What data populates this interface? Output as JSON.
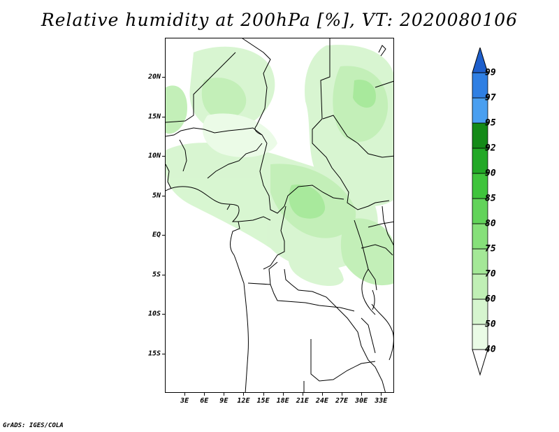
{
  "title": "Relative humidity at 200hPa [%], VT: 2020080106",
  "credit": "GrADS: IGES/COLA",
  "map": {
    "lat_labels": [
      "20N",
      "15N",
      "10N",
      "5N",
      "EQ",
      "5S",
      "10S",
      "15S"
    ],
    "lat_values": [
      20,
      15,
      10,
      5,
      0,
      -5,
      -10,
      -15
    ],
    "lon_labels": [
      "3E",
      "6E",
      "9E",
      "12E",
      "15E",
      "18E",
      "21E",
      "24E",
      "27E",
      "30E",
      "33E"
    ],
    "lon_values": [
      3,
      6,
      9,
      12,
      15,
      18,
      21,
      24,
      27,
      30,
      33
    ],
    "lat_range": [
      -20,
      25
    ],
    "lon_range": [
      0,
      35
    ]
  },
  "colorbar": {
    "levels": [
      "40",
      "50",
      "60",
      "70",
      "75",
      "80",
      "85",
      "90",
      "92",
      "95",
      "97",
      "99"
    ],
    "colors": [
      "#eafbe6",
      "#d6f5cf",
      "#c0efb5",
      "#a4e897",
      "#86e07a",
      "#62d35a",
      "#3fc43c",
      "#22a826",
      "#148a18",
      "#4a9ff0",
      "#2f7fe3",
      "#1e5fcc"
    ]
  }
}
